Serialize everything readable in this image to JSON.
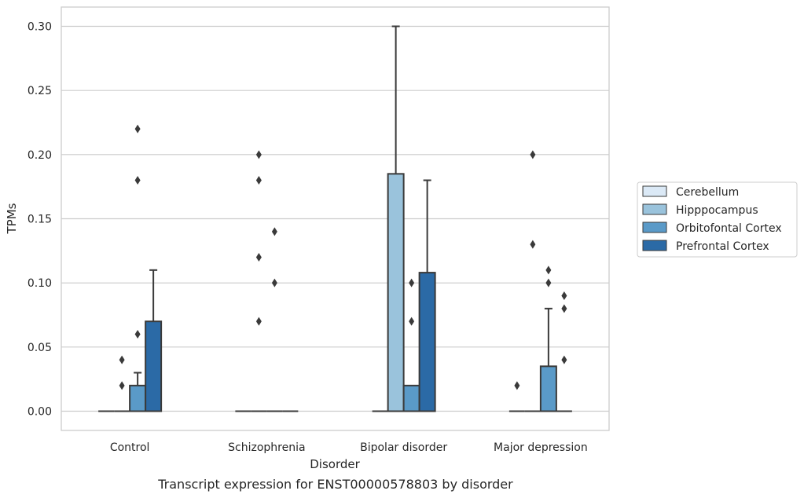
{
  "chart_data": {
    "type": "boxplot",
    "caption": "Transcript expression for ENST00000578803 by disorder",
    "xlabel": "Disorder",
    "ylabel": "TPMs",
    "ylim": [
      -0.015,
      0.315
    ],
    "yticks": [
      0.0,
      0.05,
      0.1,
      0.15,
      0.2,
      0.25,
      0.3
    ],
    "ytick_labels": [
      "0.00",
      "0.05",
      "0.10",
      "0.15",
      "0.20",
      "0.25",
      "0.30"
    ],
    "grid": "horizontal",
    "legend_position": "right",
    "categories": [
      "Control",
      "Schizophrenia",
      "Bipolar disorder",
      "Major depression"
    ],
    "series": [
      {
        "name": "Cerebellum",
        "color": "#dbe9f6",
        "boxes": [
          {
            "q1": 0,
            "median": 0,
            "q3": 0,
            "whisker_low": 0,
            "whisker_high": 0,
            "outliers": []
          },
          {
            "q1": 0,
            "median": 0,
            "q3": 0,
            "whisker_low": 0,
            "whisker_high": 0,
            "outliers": []
          },
          {
            "q1": 0,
            "median": 0,
            "q3": 0,
            "whisker_low": 0,
            "whisker_high": 0,
            "outliers": []
          },
          {
            "q1": 0,
            "median": 0,
            "q3": 0,
            "whisker_low": 0,
            "whisker_high": 0,
            "outliers": [
              0.02
            ]
          }
        ]
      },
      {
        "name": "Hipppocampus",
        "color": "#9ac3dc",
        "boxes": [
          {
            "q1": 0,
            "median": 0,
            "q3": 0,
            "whisker_low": 0,
            "whisker_high": 0,
            "outliers": [
              0.02,
              0.04
            ]
          },
          {
            "q1": 0,
            "median": 0,
            "q3": 0,
            "whisker_low": 0,
            "whisker_high": 0,
            "outliers": [
              0.07,
              0.12,
              0.18,
              0.2
            ]
          },
          {
            "q1": 0,
            "median": 0,
            "q3": 0.185,
            "whisker_low": 0,
            "whisker_high": 0.3,
            "outliers": []
          },
          {
            "q1": 0,
            "median": 0,
            "q3": 0,
            "whisker_low": 0,
            "whisker_high": 0,
            "outliers": [
              0.13,
              0.2
            ]
          }
        ]
      },
      {
        "name": "Orbitofontal Cortex",
        "color": "#5a9ac8",
        "boxes": [
          {
            "q1": 0,
            "median": 0,
            "q3": 0.02,
            "whisker_low": 0,
            "whisker_high": 0.03,
            "outliers": [
              0.06,
              0.18,
              0.22
            ]
          },
          {
            "q1": 0,
            "median": 0,
            "q3": 0,
            "whisker_low": 0,
            "whisker_high": 0,
            "outliers": [
              0.1,
              0.14
            ]
          },
          {
            "q1": 0,
            "median": 0,
            "q3": 0.02,
            "whisker_low": 0,
            "whisker_high": 0.02,
            "outliers": [
              0.07,
              0.1
            ]
          },
          {
            "q1": 0,
            "median": 0,
            "q3": 0.035,
            "whisker_low": 0,
            "whisker_high": 0.08,
            "outliers": [
              0.1,
              0.11
            ]
          }
        ]
      },
      {
        "name": "Prefrontal Cortex",
        "color": "#2b6aa6",
        "boxes": [
          {
            "q1": 0,
            "median": 0,
            "q3": 0.07,
            "whisker_low": 0,
            "whisker_high": 0.11,
            "outliers": []
          },
          {
            "q1": 0,
            "median": 0,
            "q3": 0,
            "whisker_low": 0,
            "whisker_high": 0,
            "outliers": []
          },
          {
            "q1": 0,
            "median": 0,
            "q3": 0.108,
            "whisker_low": 0,
            "whisker_high": 0.18,
            "outliers": []
          },
          {
            "q1": 0,
            "median": 0,
            "q3": 0,
            "whisker_low": 0,
            "whisker_high": 0,
            "outliers": [
              0.04,
              0.08,
              0.09
            ]
          }
        ]
      }
    ]
  }
}
